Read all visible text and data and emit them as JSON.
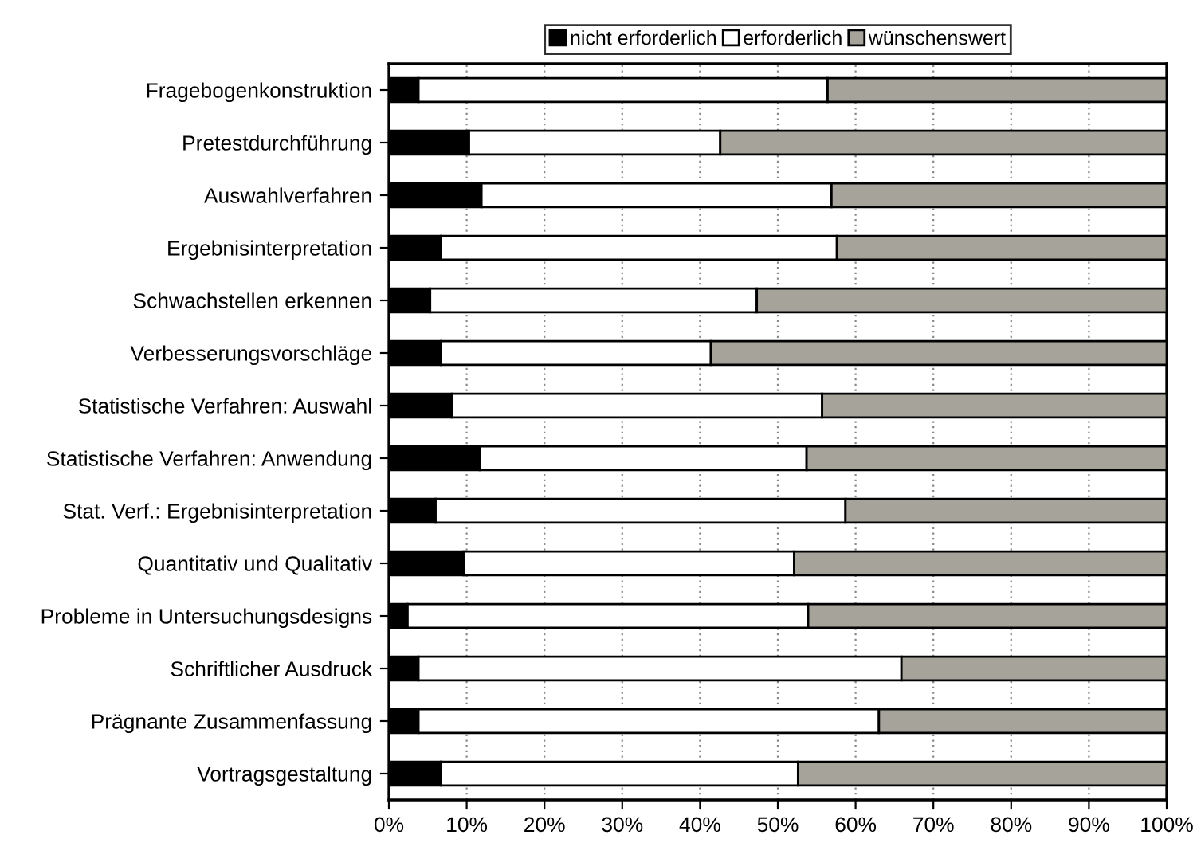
{
  "chart_data": {
    "type": "bar",
    "orientation": "horizontal",
    "stacked": true,
    "categories": [
      "Fragebogenkonstruktion",
      "Pretestdurchführung",
      "Auswahlverfahren",
      "Ergebnisinterpretation",
      "Schwachstellen erkennen",
      "Verbesserungsvorschläge",
      "Statistische Verfahren: Auswahl",
      "Statistische Verfahren: Anwendung",
      "Stat. Verf.: Ergebnisinterpretation",
      "Quantitativ und Qualitativ",
      "Probleme in Untersuchungsdesigns",
      "Schriftlicher Ausdruck",
      "Prägnante Zusammenfassung",
      "Vortragsgestaltung"
    ],
    "series": [
      {
        "name": "nicht erforderlich",
        "color": "#000000",
        "values": [
          3.8,
          10.3,
          11.9,
          6.7,
          5.3,
          6.7,
          8.1,
          11.7,
          6.0,
          9.6,
          2.4,
          3.8,
          3.8,
          6.7
        ]
      },
      {
        "name": "erforderlich",
        "color": "#ffffff",
        "values": [
          52.6,
          32.3,
          45.0,
          50.9,
          42.0,
          34.7,
          47.6,
          42.0,
          52.7,
          42.5,
          51.5,
          62.1,
          59.2,
          45.9
        ]
      },
      {
        "name": "wünschenswert",
        "color": "#a6a39b",
        "values": [
          43.6,
          57.4,
          43.1,
          42.4,
          52.7,
          58.6,
          44.3,
          46.3,
          41.3,
          47.9,
          46.1,
          34.1,
          37.0,
          47.4
        ]
      }
    ],
    "xlim": [
      0,
      100
    ],
    "xticks": [
      {
        "value": 0,
        "label": "0%"
      },
      {
        "value": 10,
        "label": "10%"
      },
      {
        "value": 20,
        "label": "20%"
      },
      {
        "value": 30,
        "label": "30%"
      },
      {
        "value": 40,
        "label": "40%"
      },
      {
        "value": 50,
        "label": "50%"
      },
      {
        "value": 60,
        "label": "60%"
      },
      {
        "value": 70,
        "label": "70%"
      },
      {
        "value": 80,
        "label": "80%"
      },
      {
        "value": 90,
        "label": "90%"
      },
      {
        "value": 100,
        "label": "100%"
      }
    ],
    "grid": "x",
    "legend": "top"
  }
}
